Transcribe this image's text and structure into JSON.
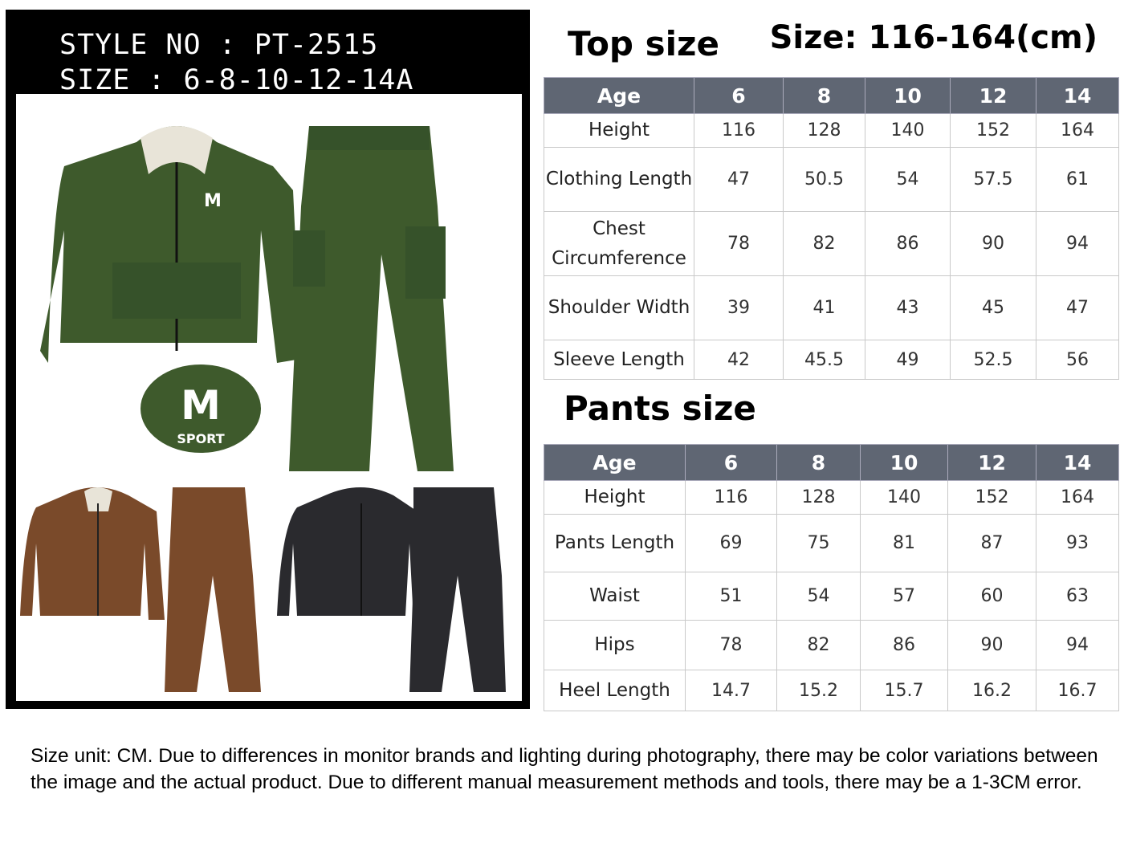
{
  "header": {
    "style_line": "STYLE NO : PT-2515",
    "size_line": "SIZE : 6-8-10-12-14A"
  },
  "logo": {
    "text": "SPORT"
  },
  "colors": {
    "table_header": "#5f6673",
    "green": "#3e5a2c",
    "brown": "#7a4a2a",
    "black": "#2a2a2e"
  },
  "top": {
    "title": "Top size",
    "range": "Size: 116-164(cm)",
    "headers": [
      "Age",
      "6",
      "8",
      "10",
      "12",
      "14"
    ],
    "rows": [
      {
        "label": "Height",
        "values": [
          "116",
          "128",
          "140",
          "152",
          "164"
        ]
      },
      {
        "label": "Clothing Length",
        "values": [
          "47",
          "50.5",
          "54",
          "57.5",
          "61"
        ]
      },
      {
        "label": "Chest Circumference",
        "values": [
          "78",
          "82",
          "86",
          "90",
          "94"
        ]
      },
      {
        "label": "Shoulder Width",
        "values": [
          "39",
          "41",
          "43",
          "45",
          "47"
        ]
      },
      {
        "label": "Sleeve Length",
        "values": [
          "42",
          "45.5",
          "49",
          "52.5",
          "56"
        ]
      }
    ]
  },
  "pants": {
    "title": "Pants size",
    "headers": [
      "Age",
      "6",
      "8",
      "10",
      "12",
      "14"
    ],
    "rows": [
      {
        "label": "Height",
        "values": [
          "116",
          "128",
          "140",
          "152",
          "164"
        ]
      },
      {
        "label": "Pants Length",
        "values": [
          "69",
          "75",
          "81",
          "87",
          "93"
        ]
      },
      {
        "label": "Waist",
        "values": [
          "51",
          "54",
          "57",
          "60",
          "63"
        ]
      },
      {
        "label": "Hips",
        "values": [
          "78",
          "82",
          "86",
          "90",
          "94"
        ]
      },
      {
        "label": "Heel Length",
        "values": [
          "14.7",
          "15.2",
          "15.7",
          "16.2",
          "16.7"
        ]
      }
    ]
  },
  "note": "Size unit: CM. Due to differences in monitor brands and lighting during photography, there may be color variations between the image and the actual product. Due to different manual measurement methods and tools, there may be a 1-3CM error."
}
